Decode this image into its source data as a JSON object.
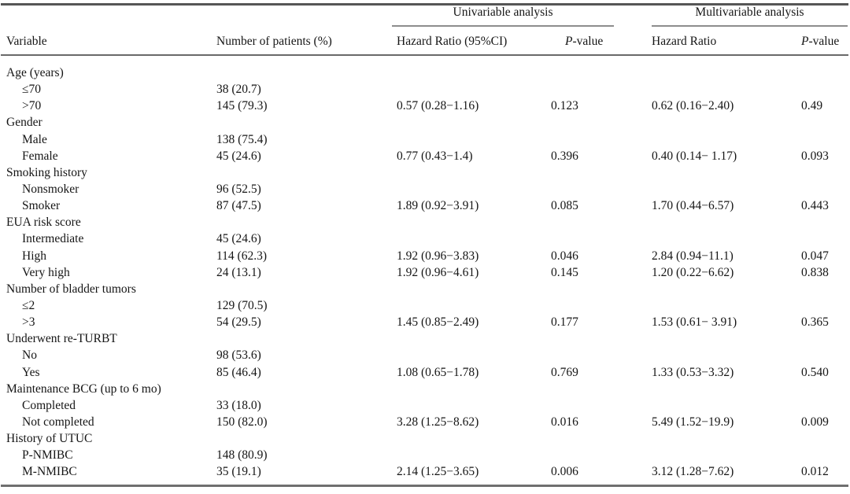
{
  "table": {
    "spanners": [
      {
        "label": "Univariable analysis"
      },
      {
        "label": "Multivariable analysis"
      }
    ],
    "headers": {
      "variable": "Variable",
      "patients": "Number of patients (%)",
      "uni_hr": "Hazard Ratio (95%CI)",
      "uni_p": "P-value",
      "multi_hr": "Hazard Ratio",
      "multi_p": "P-value"
    },
    "rows": [
      {
        "label": "Age (years)",
        "indent": false,
        "n": "",
        "uni_hr": "",
        "uni_p": "",
        "multi_hr": "",
        "multi_p": ""
      },
      {
        "label": "≤70",
        "indent": true,
        "n": "38 (20.7)",
        "uni_hr": "",
        "uni_p": "",
        "multi_hr": "",
        "multi_p": ""
      },
      {
        "label": ">70",
        "indent": true,
        "n": "145 (79.3)",
        "uni_hr": "0.57 (0.28−1.16)",
        "uni_p": "0.123",
        "multi_hr": "0.62 (0.16−2.40)",
        "multi_p": "0.49"
      },
      {
        "label": "Gender",
        "indent": false,
        "n": "",
        "uni_hr": "",
        "uni_p": "",
        "multi_hr": "",
        "multi_p": ""
      },
      {
        "label": "Male",
        "indent": true,
        "n": "138 (75.4)",
        "uni_hr": "",
        "uni_p": "",
        "multi_hr": "",
        "multi_p": ""
      },
      {
        "label": "Female",
        "indent": true,
        "n": "45 (24.6)",
        "uni_hr": "0.77 (0.43−1.4)",
        "uni_p": "0.396",
        "multi_hr": "0.40 (0.14− 1.17)",
        "multi_p": "0.093"
      },
      {
        "label": "Smoking history",
        "indent": false,
        "n": "",
        "uni_hr": "",
        "uni_p": "",
        "multi_hr": "",
        "multi_p": ""
      },
      {
        "label": "Nonsmoker",
        "indent": true,
        "n": "96 (52.5)",
        "uni_hr": "",
        "uni_p": "",
        "multi_hr": "",
        "multi_p": ""
      },
      {
        "label": "Smoker",
        "indent": true,
        "n": "87 (47.5)",
        "uni_hr": "1.89 (0.92−3.91)",
        "uni_p": "0.085",
        "multi_hr": "1.70 (0.44−6.57)",
        "multi_p": "0.443"
      },
      {
        "label": "EUA risk score",
        "indent": false,
        "n": "",
        "uni_hr": "",
        "uni_p": "",
        "multi_hr": "",
        "multi_p": ""
      },
      {
        "label": "Intermediate",
        "indent": true,
        "n": "45 (24.6)",
        "uni_hr": "",
        "uni_p": "",
        "multi_hr": "",
        "multi_p": ""
      },
      {
        "label": "High",
        "indent": true,
        "n": "114 (62.3)",
        "uni_hr": "1.92 (0.96−3.83)",
        "uni_p": "0.046",
        "multi_hr": "2.84 (0.94−11.1)",
        "multi_p": "0.047"
      },
      {
        "label": "Very high",
        "indent": true,
        "n": "24 (13.1)",
        "uni_hr": "1.92 (0.96−4.61)",
        "uni_p": "0.145",
        "multi_hr": "1.20 (0.22−6.62)",
        "multi_p": "0.838"
      },
      {
        "label": "Number of bladder tumors",
        "indent": false,
        "n": "",
        "uni_hr": "",
        "uni_p": "",
        "multi_hr": "",
        "multi_p": ""
      },
      {
        "label": "≤2",
        "indent": true,
        "n": "129 (70.5)",
        "uni_hr": "",
        "uni_p": "",
        "multi_hr": "",
        "multi_p": ""
      },
      {
        "label": ">3",
        "indent": true,
        "n": "54 (29.5)",
        "uni_hr": "1.45 (0.85−2.49)",
        "uni_p": "0.177",
        "multi_hr": "1.53 (0.61− 3.91)",
        "multi_p": "0.365"
      },
      {
        "label": "Underwent re-TURBT",
        "indent": false,
        "n": "",
        "uni_hr": "",
        "uni_p": "",
        "multi_hr": "",
        "multi_p": ""
      },
      {
        "label": "No",
        "indent": true,
        "n": "98 (53.6)",
        "uni_hr": "",
        "uni_p": "",
        "multi_hr": "",
        "multi_p": ""
      },
      {
        "label": "Yes",
        "indent": true,
        "n": "85 (46.4)",
        "uni_hr": "1.08 (0.65−1.78)",
        "uni_p": "0.769",
        "multi_hr": "1.33 (0.53−3.32)",
        "multi_p": "0.540"
      },
      {
        "label": "Maintenance BCG (up to 6 mo)",
        "indent": false,
        "n": "",
        "uni_hr": "",
        "uni_p": "",
        "multi_hr": "",
        "multi_p": ""
      },
      {
        "label": "Completed",
        "indent": true,
        "n": "33 (18.0)",
        "uni_hr": "",
        "uni_p": "",
        "multi_hr": "",
        "multi_p": ""
      },
      {
        "label": "Not completed",
        "indent": true,
        "n": "150 (82.0)",
        "uni_hr": "3.28 (1.25−8.62)",
        "uni_p": "0.016",
        "multi_hr": "5.49 (1.52−19.9)",
        "multi_p": "0.009"
      },
      {
        "label": "History of UTUC",
        "indent": false,
        "n": "",
        "uni_hr": "",
        "uni_p": "",
        "multi_hr": "",
        "multi_p": ""
      },
      {
        "label": "P-NMIBC",
        "indent": true,
        "n": "148 (80.9)",
        "uni_hr": "",
        "uni_p": "",
        "multi_hr": "",
        "multi_p": ""
      },
      {
        "label": "M-NMIBC",
        "indent": true,
        "n": "35 (19.1)",
        "uni_hr": "2.14 (1.25−3.65)",
        "uni_p": "0.006",
        "multi_hr": "3.12 (1.28−7.62)",
        "multi_p": "0.012"
      }
    ]
  }
}
